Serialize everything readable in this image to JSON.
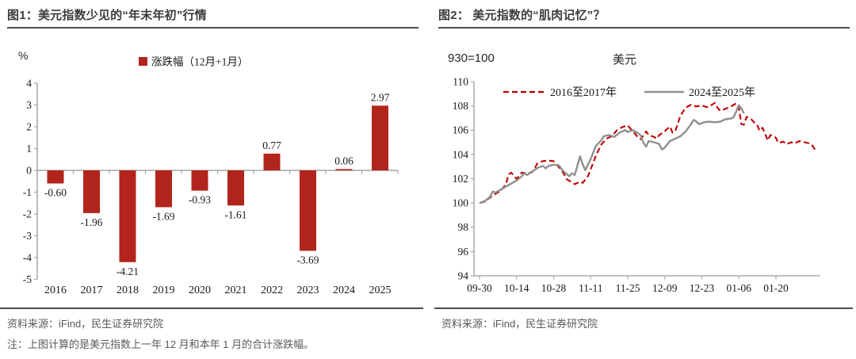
{
  "left_panel": {
    "title": "图1：美元指数少见的“年末年初”行情",
    "unit_label": "%",
    "legend": "涨跌幅（12月+1月）",
    "source": "资料来源：iFind，民生证券研究院",
    "note": "注：上图计算的是美元指数上一年 12 月和本年 1 月的合计涨跌幅。"
  },
  "right_panel": {
    "title": "图2： 美元指数的“肌肉记忆”？",
    "index_label": "930=100",
    "chart_title": "美元",
    "source": "资料来源：iFind，民生证券研究院"
  },
  "colors": {
    "bar": "#b2251c",
    "neg_label": "#fe0000",
    "pos_label": "#3f3f3f",
    "axis": "#a6a6a6",
    "tick_text": "#1a1a1a",
    "red_line": "#c00000",
    "gray_line": "#8f8f8f",
    "title": "#3b3b3b",
    "rule": "#4d4d4d",
    "source_text": "#595959"
  },
  "chart_data": [
    {
      "type": "bar",
      "title": "美元指数少见的“年末年初”行情",
      "unit": "%",
      "legend": "涨跌幅（12月+1月）",
      "categories": [
        "2016",
        "2017",
        "2018",
        "2019",
        "2020",
        "2021",
        "2022",
        "2023",
        "2024",
        "2025"
      ],
      "values": [
        -0.6,
        -1.96,
        -4.21,
        -1.69,
        -0.93,
        -1.61,
        0.77,
        -3.69,
        0.06,
        2.97
      ],
      "labels": [
        "-0.60",
        "-1.96",
        "-4.21",
        "-1.69",
        "-0.93",
        "-1.61",
        "0.77",
        "-3.69",
        "0.06",
        "2.97"
      ],
      "ylim": [
        -5,
        4
      ],
      "yticks": [
        4,
        3,
        2,
        1,
        0,
        -1,
        -2,
        -3,
        -4,
        -5
      ],
      "xlabel": "",
      "ylabel": "%",
      "grid": false,
      "legend_position": "top"
    },
    {
      "type": "line",
      "title": "美元",
      "index_note": "930=100",
      "ylim": [
        94,
        110
      ],
      "yticks": [
        110,
        108,
        106,
        104,
        102,
        100,
        98,
        96,
        94
      ],
      "xticks": [
        "09-30",
        "10-14",
        "10-28",
        "11-11",
        "11-25",
        "12-09",
        "12-23",
        "01-06",
        "01-20"
      ],
      "xtick_day_spacing": 14,
      "grid": false,
      "legend_position": "top",
      "series": [
        {
          "name": "2016至2017年",
          "style": "dashed",
          "color_key": "red_line",
          "points": [
            [
              0,
              100
            ],
            [
              2,
              100.1
            ],
            [
              4,
              100.45
            ],
            [
              6,
              100.75
            ],
            [
              8,
              101.0
            ],
            [
              10,
              101.55
            ],
            [
              11,
              102.35
            ],
            [
              12,
              102.5
            ],
            [
              13,
              102.25
            ],
            [
              14,
              102.0
            ],
            [
              15,
              102.2
            ],
            [
              16,
              102.5
            ],
            [
              18,
              102.45
            ],
            [
              20,
              102.55
            ],
            [
              22,
              103.3
            ],
            [
              24,
              103.45
            ],
            [
              26,
              103.5
            ],
            [
              28,
              103.45
            ],
            [
              29,
              103.2
            ],
            [
              31,
              102.7
            ],
            [
              32,
              102.35
            ],
            [
              33,
              101.95
            ],
            [
              35,
              101.7
            ],
            [
              36,
              101.55
            ],
            [
              38,
              101.75
            ],
            [
              39,
              101.65
            ],
            [
              41,
              102.2
            ],
            [
              43,
              103.3
            ],
            [
              44,
              103.9
            ],
            [
              46,
              104.8
            ],
            [
              48,
              105.3
            ],
            [
              50,
              105.5
            ],
            [
              52,
              106.0
            ],
            [
              54,
              106.25
            ],
            [
              56,
              106.4
            ],
            [
              58,
              105.9
            ],
            [
              60,
              105.4
            ],
            [
              61,
              105.25
            ],
            [
              63,
              105.9
            ],
            [
              64,
              105.6
            ],
            [
              66,
              105.45
            ],
            [
              67,
              105.3
            ],
            [
              68,
              105.6
            ],
            [
              70,
              105.9
            ],
            [
              72,
              106.3
            ],
            [
              73,
              105.8
            ],
            [
              74,
              105.9
            ],
            [
              76,
              107.2
            ],
            [
              78,
              107.85
            ],
            [
              80,
              108.1
            ],
            [
              82,
              107.95
            ],
            [
              84,
              108.05
            ],
            [
              86,
              107.9
            ],
            [
              88,
              108.1
            ],
            [
              89,
              108.25
            ],
            [
              90,
              107.85
            ],
            [
              91,
              107.6
            ],
            [
              93,
              107.75
            ],
            [
              95,
              107.95
            ],
            [
              97,
              108.2
            ],
            [
              98,
              108.0
            ],
            [
              99,
              106.5
            ],
            [
              100,
              106.45
            ],
            [
              101,
              107.1
            ],
            [
              103,
              106.85
            ],
            [
              104,
              106.6
            ],
            [
              105,
              106.4
            ],
            [
              106,
              105.95
            ],
            [
              107,
              106.2
            ],
            [
              108,
              105.7
            ],
            [
              109,
              105.15
            ],
            [
              110,
              105.6
            ],
            [
              112,
              105.4
            ],
            [
              113,
              104.95
            ],
            [
              115,
              105.05
            ],
            [
              116,
              104.85
            ],
            [
              118,
              105.0
            ],
            [
              119,
              104.9
            ],
            [
              121,
              105.1
            ],
            [
              123,
              105.0
            ],
            [
              125,
              104.9
            ],
            [
              126,
              104.7
            ],
            [
              127,
              104.35
            ]
          ]
        },
        {
          "name": "2024至2025年",
          "style": "solid",
          "color_key": "gray_line",
          "points": [
            [
              0,
              100
            ],
            [
              2,
              100.15
            ],
            [
              4,
              100.5
            ],
            [
              5,
              100.95
            ],
            [
              6,
              100.85
            ],
            [
              8,
              101.1
            ],
            [
              10,
              101.35
            ],
            [
              12,
              101.6
            ],
            [
              14,
              101.85
            ],
            [
              16,
              102.2
            ],
            [
              17,
              102.45
            ],
            [
              18,
              102.3
            ],
            [
              20,
              102.6
            ],
            [
              22,
              102.9
            ],
            [
              24,
              103.05
            ],
            [
              25,
              102.85
            ],
            [
              26,
              103.05
            ],
            [
              28,
              103.15
            ],
            [
              30,
              103.1
            ],
            [
              31,
              102.8
            ],
            [
              32,
              102.55
            ],
            [
              34,
              102.2
            ],
            [
              35,
              102.45
            ],
            [
              36,
              102.3
            ],
            [
              37,
              103.05
            ],
            [
              38,
              103.85
            ],
            [
              39,
              103.2
            ],
            [
              40,
              102.7
            ],
            [
              42,
              103.6
            ],
            [
              44,
              104.7
            ],
            [
              46,
              105.15
            ],
            [
              47,
              105.5
            ],
            [
              49,
              105.6
            ],
            [
              51,
              105.45
            ],
            [
              53,
              105.8
            ],
            [
              55,
              106.0
            ],
            [
              56,
              105.85
            ],
            [
              58,
              106.0
            ],
            [
              60,
              105.75
            ],
            [
              61,
              105.55
            ],
            [
              62,
              104.95
            ],
            [
              63,
              104.65
            ],
            [
              64,
              105.1
            ],
            [
              66,
              105.0
            ],
            [
              68,
              104.85
            ],
            [
              69,
              104.4
            ],
            [
              70,
              104.55
            ],
            [
              72,
              105.1
            ],
            [
              74,
              105.3
            ],
            [
              76,
              105.5
            ],
            [
              78,
              105.9
            ],
            [
              80,
              106.5
            ],
            [
              81,
              106.85
            ],
            [
              82,
              106.7
            ],
            [
              83,
              106.5
            ],
            [
              85,
              106.65
            ],
            [
              87,
              106.7
            ],
            [
              89,
              106.65
            ],
            [
              91,
              106.7
            ],
            [
              93,
              106.9
            ],
            [
              95,
              106.95
            ],
            [
              96,
              107.05
            ],
            [
              97,
              107.5
            ],
            [
              98,
              108.05
            ],
            [
              99,
              107.8
            ],
            [
              100,
              107.4
            ]
          ]
        }
      ]
    }
  ]
}
